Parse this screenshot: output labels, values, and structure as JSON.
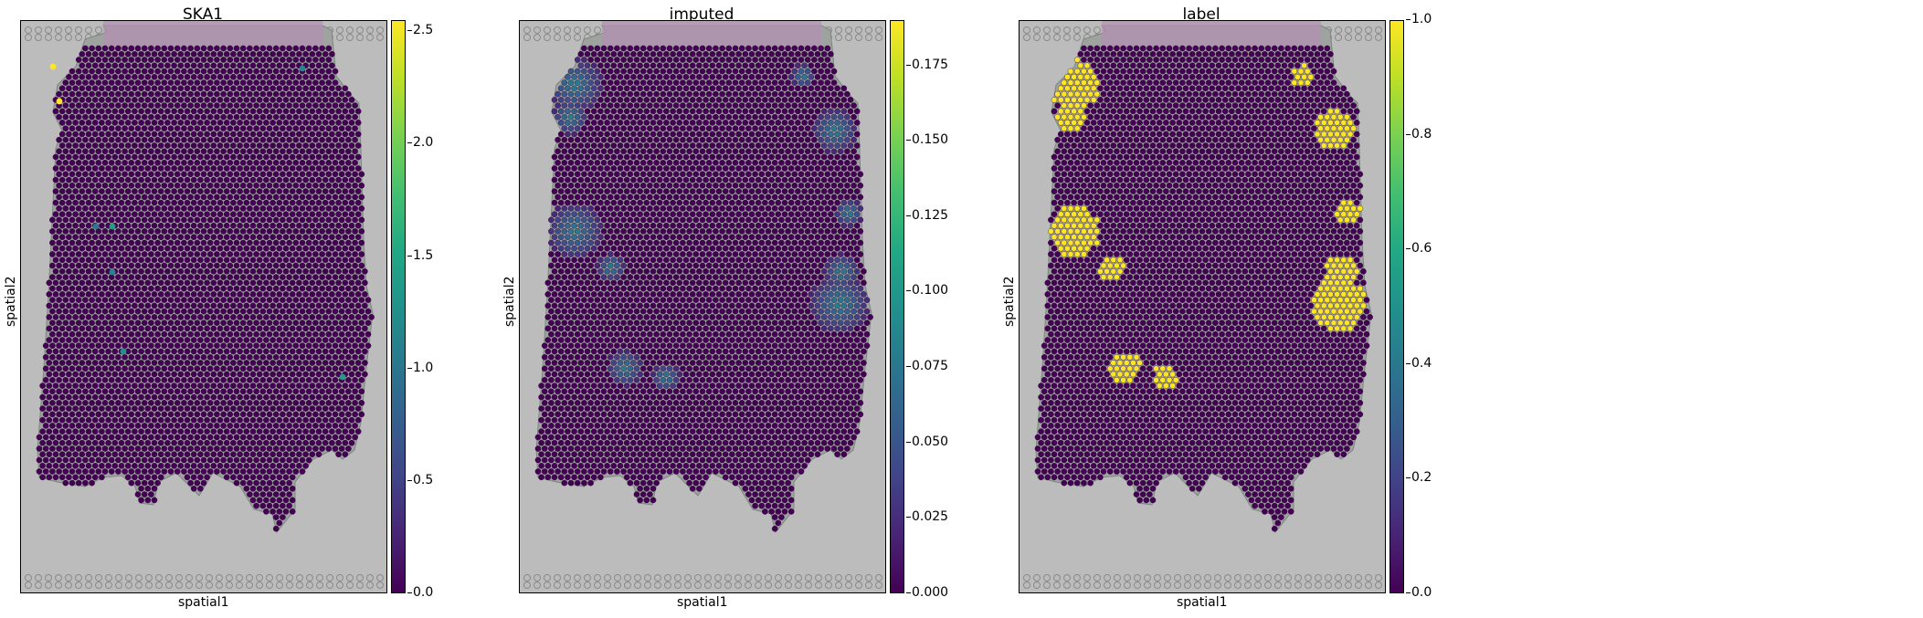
{
  "figure": {
    "panels": [
      {
        "title": "SKA1",
        "xlabel": "spatial1",
        "ylabel": "spatial2",
        "colorbar_ticks": [
          "0.0",
          "0.5",
          "1.0",
          "1.5",
          "2.0",
          "2.5"
        ]
      },
      {
        "title": "imputed",
        "xlabel": "spatial1",
        "ylabel": "spatial2",
        "colorbar_ticks": [
          "0.000",
          "0.025",
          "0.050",
          "0.075",
          "0.100",
          "0.125",
          "0.150",
          "0.175"
        ]
      },
      {
        "title": "label",
        "xlabel": "spatial1",
        "ylabel": "spatial2",
        "colorbar_ticks": [
          "0.0",
          "0.2",
          "0.4",
          "0.6",
          "0.8",
          "1.0"
        ]
      }
    ]
  },
  "colors": {
    "background_tissue": "#9ea3a0",
    "slide_background": "#bcbcbc",
    "spot_low": "#440154",
    "spot_high": "#fde725",
    "colormap": "viridis"
  },
  "chart_data": [
    {
      "type": "heatmap",
      "title": "SKA1",
      "xlabel": "spatial1",
      "ylabel": "spatial2",
      "colorbar_range": [
        0.0,
        2.55
      ],
      "note_values": "nearly all spots ~0; a few scattered spots up to ~2.5"
    },
    {
      "type": "heatmap",
      "title": "imputed",
      "xlabel": "spatial1",
      "ylabel": "spatial2",
      "colorbar_range": [
        0.0,
        0.19
      ]
    },
    {
      "type": "heatmap",
      "title": "label",
      "xlabel": "spatial1",
      "ylabel": "spatial2",
      "colorbar_range": [
        0.0,
        1.0
      ]
    }
  ]
}
